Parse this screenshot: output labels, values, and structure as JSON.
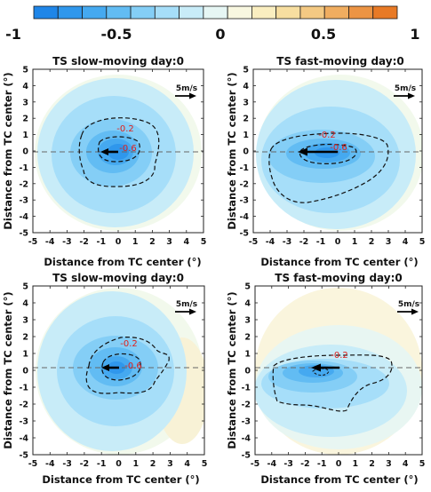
{
  "colorbar": {
    "ticks": [
      "-1",
      "-0.5",
      "0",
      "0.5",
      "1"
    ],
    "colors": [
      "#1f86e8",
      "#2f97ec",
      "#45a9f0",
      "#62bcf3",
      "#84cef6",
      "#a6def9",
      "#c8ecf8",
      "#e6f6f4",
      "#f8f7e0",
      "#faeec0",
      "#f7dea0",
      "#f4c983",
      "#f0ad60",
      "#ec9444",
      "#e87a26"
    ]
  },
  "legend": {
    "arrow_label": "5m/s"
  },
  "chart_data": [
    {
      "type": "heatmap",
      "title": "TS slow-moving day:0",
      "xlabel": "Distance from TC center (°)",
      "ylabel": "Distance from TC center (°)",
      "xlim": [
        -5,
        5
      ],
      "ylim": [
        -5,
        5
      ],
      "xticks": [
        "-5",
        "-4",
        "-3",
        "-2",
        "-1",
        "0",
        "1",
        "2",
        "3",
        "4",
        "5"
      ],
      "yticks": [
        "5",
        "4",
        "3",
        "2",
        "1",
        "0",
        "-1",
        "-2",
        "-3",
        "-4",
        "-5"
      ],
      "contour_labels": [
        "-0.2",
        "-0.6"
      ],
      "contour_levels": [
        -0.2,
        -0.6
      ],
      "minimum": -0.8,
      "motion_vector": {
        "u": -1.0,
        "v": 0
      }
    },
    {
      "type": "heatmap",
      "title": "TS fast-moving day:0",
      "xlabel": "Distance from TC center (°)",
      "ylabel": "Distance from TC center (°)",
      "xlim": [
        -5,
        5
      ],
      "ylim": [
        -5,
        5
      ],
      "xticks": [
        "-5",
        "-4",
        "-3",
        "-2",
        "-1",
        "0",
        "1",
        "2",
        "3",
        "4",
        "5"
      ],
      "yticks": [
        "5",
        "4",
        "3",
        "2",
        "1",
        "0",
        "-1",
        "-2",
        "-3",
        "-4",
        "-5"
      ],
      "contour_labels": [
        "-0.2",
        "-0.6"
      ],
      "contour_levels": [
        -0.2,
        -0.6
      ],
      "minimum": -0.75,
      "motion_vector": {
        "u": -2.5,
        "v": 0
      }
    },
    {
      "type": "heatmap",
      "title": "TS slow-moving day:0",
      "xlabel": "Distance from TC center (°)",
      "ylabel": "Distance from TC center (°)",
      "xlim": [
        -5,
        5
      ],
      "ylim": [
        -5,
        5
      ],
      "xticks": [
        "-5",
        "-4",
        "-3",
        "-2",
        "-1",
        "0",
        "1",
        "2",
        "3",
        "4",
        "5"
      ],
      "yticks": [
        "5",
        "4",
        "3",
        "2",
        "1",
        "0",
        "-1",
        "-2",
        "-3",
        "-4",
        "-5"
      ],
      "contour_labels": [
        "-0.2",
        "-0.6"
      ],
      "contour_levels": [
        -0.2,
        -0.6
      ],
      "minimum": -0.75,
      "motion_vector": {
        "u": -1.0,
        "v": 0
      }
    },
    {
      "type": "heatmap",
      "title": "TS fast-moving day:0",
      "xlabel": "Distance from TC center (°)",
      "ylabel": "Distance from TC center (°)",
      "xlim": [
        -5,
        5
      ],
      "ylim": [
        -5,
        5
      ],
      "xticks": [
        "-5",
        "-4",
        "-3",
        "-2",
        "-1",
        "0",
        "1",
        "2",
        "3",
        "4",
        "5"
      ],
      "yticks": [
        "5",
        "4",
        "3",
        "2",
        "1",
        "0",
        "-1",
        "-2",
        "-3",
        "-4",
        "-5"
      ],
      "contour_labels": [
        "-0.2"
      ],
      "contour_levels": [
        -0.2
      ],
      "minimum": -0.5,
      "motion_vector": {
        "u": -2.5,
        "v": 0
      }
    }
  ]
}
